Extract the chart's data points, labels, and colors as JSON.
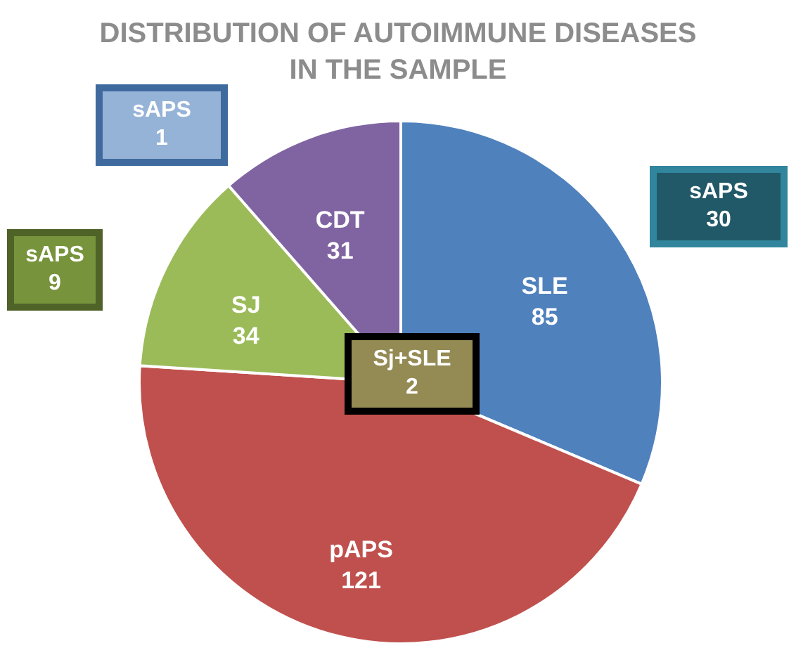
{
  "chart_data": {
    "type": "pie",
    "title": "DISTRIBUTION OF AUTOIMMUNE DISEASES IN THE SAMPLE",
    "categories": [
      "SLE",
      "pAPS",
      "SJ",
      "CDT"
    ],
    "values": [
      85,
      121,
      34,
      31
    ],
    "colors": [
      "#4f81bd",
      "#c0504d",
      "#9bbb59",
      "#8064a2"
    ],
    "data_labels": true,
    "legend": false,
    "annotations": [
      "sAPS 1",
      "sAPS 9",
      "sAPS 30",
      "Sj+SLE 2"
    ]
  }
}
